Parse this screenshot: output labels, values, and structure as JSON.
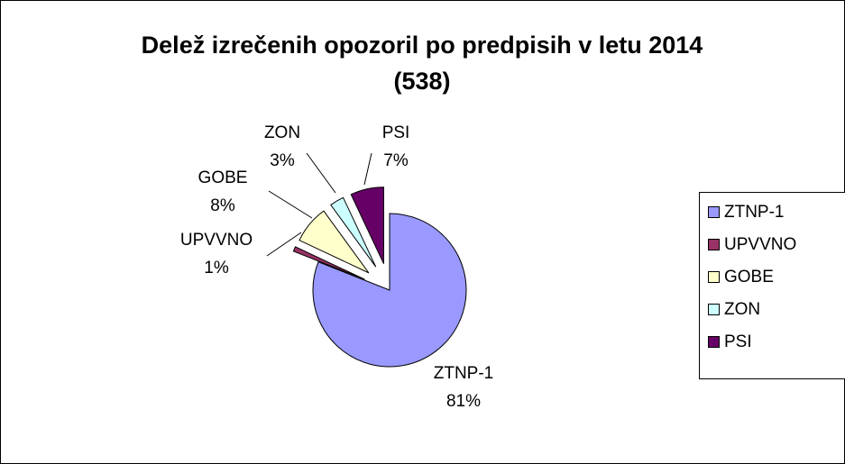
{
  "chart_data": {
    "type": "pie",
    "title": "Delež izrečenih opozoril po predpisih v letu 2014",
    "subtitle": "(538)",
    "categories": [
      "ZTNP-1",
      "UPVVNO",
      "GOBE",
      "ZON",
      "PSI"
    ],
    "values": [
      81,
      1,
      8,
      3,
      7
    ],
    "value_labels": [
      "81%",
      "1%",
      "8%",
      "3%",
      "7%"
    ],
    "colors": [
      "#9999ff",
      "#993366",
      "#ffffcc",
      "#ccffff",
      "#660066"
    ],
    "legend": "right"
  }
}
